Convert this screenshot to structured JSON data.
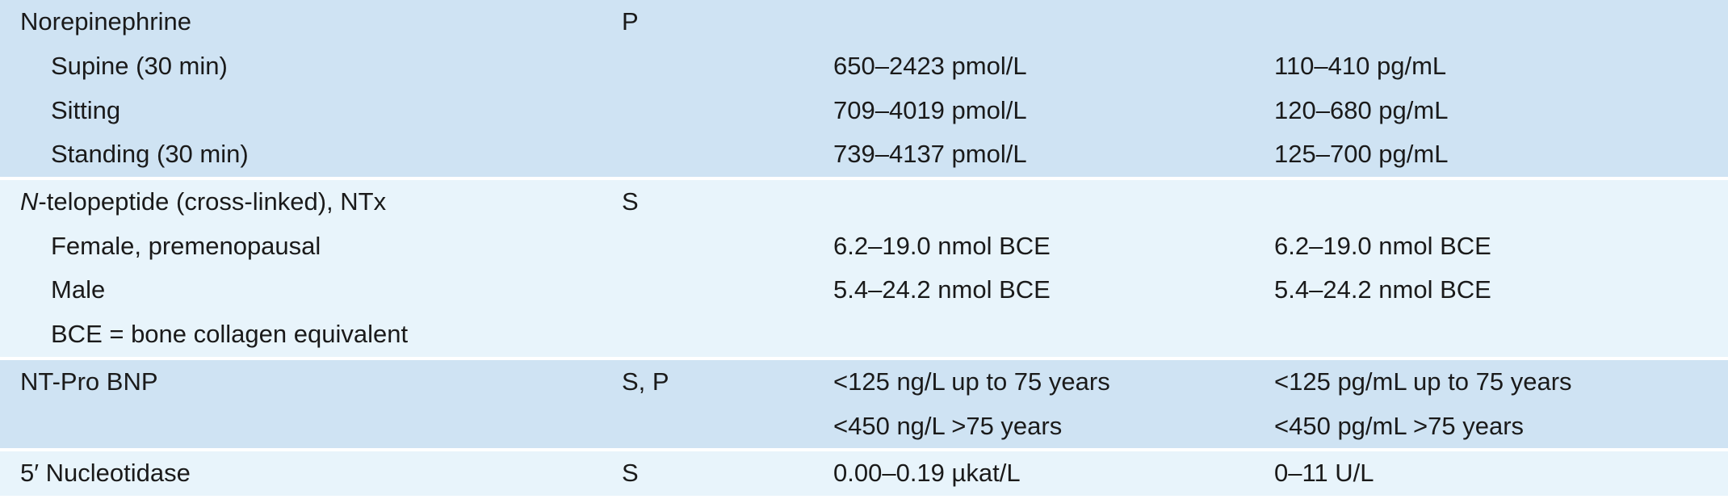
{
  "colors": {
    "dark_band": "#cfe3f3",
    "light_band": "#e8f4fb",
    "separator": "#ffffff"
  },
  "groups": [
    {
      "band": "dark",
      "rows": [
        {
          "test": "Norepinephrine",
          "indent": false,
          "specimen": "P",
          "si": "",
          "conventional": ""
        },
        {
          "test": "Supine (30 min)",
          "indent": true,
          "specimen": "",
          "si": "650–2423 pmol/L",
          "conventional": "110–410 pg/mL"
        },
        {
          "test": "Sitting",
          "indent": true,
          "specimen": "",
          "si": "709–4019 pmol/L",
          "conventional": "120–680 pg/mL"
        },
        {
          "test": "Standing (30 min)",
          "indent": true,
          "specimen": "",
          "si": "739–4137 pmol/L",
          "conventional": "125–700 pg/mL"
        }
      ]
    },
    {
      "band": "light",
      "rows": [
        {
          "test_italic": "N",
          "test": "-telopeptide (cross-linked), NTx",
          "indent": false,
          "specimen": "S",
          "si": "",
          "conventional": ""
        },
        {
          "test": "Female, premenopausal",
          "indent": true,
          "specimen": "",
          "si": "6.2–19.0 nmol BCE",
          "conventional": "6.2–19.0 nmol BCE"
        },
        {
          "test": "Male",
          "indent": true,
          "specimen": "",
          "si": "5.4–24.2 nmol BCE",
          "conventional": "5.4–24.2 nmol BCE"
        },
        {
          "test": "BCE = bone collagen equivalent",
          "indent": true,
          "specimen": "",
          "si": "",
          "conventional": ""
        }
      ]
    },
    {
      "band": "dark",
      "rows": [
        {
          "test": "NT-Pro BNP",
          "indent": false,
          "specimen": "S, P",
          "si": "<125 ng/L up to 75 years",
          "conventional": "<125 pg/mL up to 75 years"
        },
        {
          "test": "",
          "indent": false,
          "specimen": "",
          "si": "<450 ng/L >75 years",
          "conventional": "<450 pg/mL >75 years"
        }
      ]
    },
    {
      "band": "light",
      "rows": [
        {
          "test": "5′ Nucleotidase",
          "indent": false,
          "specimen": "S",
          "si": "0.00–0.19 µkat/L",
          "conventional": "0–11 U/L"
        }
      ]
    }
  ]
}
